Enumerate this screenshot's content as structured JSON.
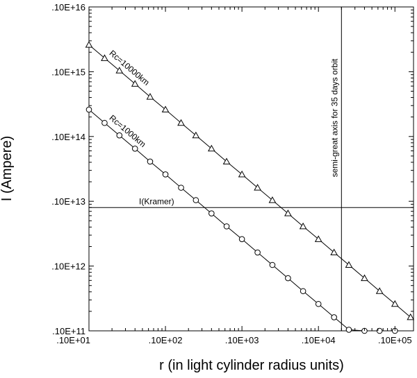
{
  "chart_data": {
    "type": "line",
    "title": "",
    "xlabel": "r (in light cylinder radius units)",
    "ylabel": "I (Ampere)",
    "x_scale": "log",
    "y_scale": "log",
    "xlim": [
      10,
      175000
    ],
    "ylim": [
      100000000000.0,
      1e+16
    ],
    "grid": false,
    "x_tick_values": [
      10,
      100,
      1000,
      10000,
      100000
    ],
    "x_tick_labels": [
      ".10E+01",
      ".10E+02",
      ".10E+03",
      ".10E+04",
      ".10E+05"
    ],
    "y_tick_values": [
      100000000000.0,
      1000000000000.0,
      10000000000000.0,
      100000000000000.0,
      1000000000000000.0,
      1e+16
    ],
    "y_tick_labels": [
      ".10E+11",
      ".10E+12",
      ".10E+13",
      ".10E+14",
      ".10E+15",
      ".10E+16"
    ],
    "series": [
      {
        "name": "Rc=10000km",
        "marker": "triangle",
        "x": [
          10,
          16,
          25,
          40,
          63,
          100,
          160,
          250,
          400,
          630,
          1000,
          1600,
          2500,
          4000,
          6300,
          10000,
          16000,
          25000,
          40000,
          63000,
          100000,
          160000
        ],
        "y": [
          2600000000000000.0,
          1620000000000000.0,
          1040000000000000.0,
          650000000000000.0,
          410000000000000.0,
          260000000000000.0,
          162000000000000.0,
          104000000000000.0,
          65000000000000.0,
          41000000000000.0,
          26000000000000.0,
          16200000000000.0,
          10400000000000.0,
          6500000000000.0,
          4100000000000.0,
          2600000000000.0,
          1620000000000.0,
          1040000000000.0,
          650000000000.0,
          410000000000.0,
          260000000000.0,
          162000000000.0
        ],
        "label": "Rc=10000km"
      },
      {
        "name": "Rc=1000km",
        "marker": "circle",
        "x": [
          10,
          16,
          25,
          40,
          63,
          100,
          160,
          250,
          400,
          630,
          1000,
          1600,
          2500,
          4000,
          6300,
          10000,
          16000,
          25000,
          40000,
          63000,
          100000
        ],
        "y": [
          260000000000000.0,
          162000000000000.0,
          104000000000000.0,
          65000000000000.0,
          41000000000000.0,
          26000000000000.0,
          16200000000000.0,
          10400000000000.0,
          6500000000000.0,
          4100000000000.0,
          2600000000000.0,
          1620000000000.0,
          1040000000000.0,
          650000000000.0,
          410000000000.0,
          260000000000.0,
          162000000000.0,
          104000000000.0,
          100000000000.0,
          100000000000.0,
          100000000000.0
        ],
        "label": "Rc=1000km"
      }
    ],
    "reference_lines": [
      {
        "orientation": "horizontal",
        "value": 8000000000000.0,
        "label": "I(Kramer)"
      },
      {
        "orientation": "vertical",
        "value": 20000,
        "label": "semi-great axis for 35 days orbit"
      }
    ]
  }
}
